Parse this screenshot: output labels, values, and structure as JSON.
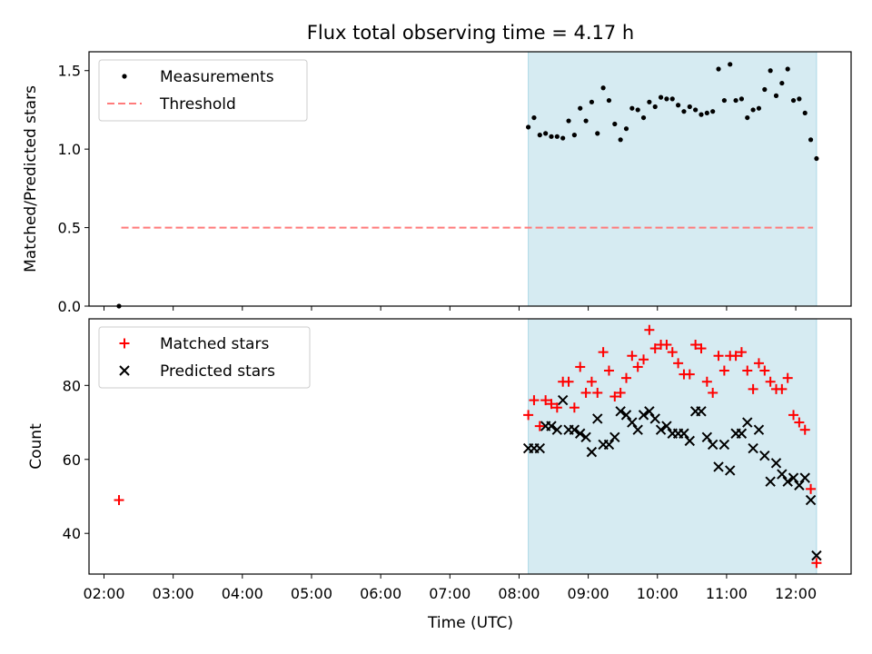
{
  "figure": {
    "title": "Flux total observing time = 4.17 h",
    "colors": {
      "shade": "#add8e6",
      "threshold": "#ff7b7b",
      "matched": "#ff0000",
      "predicted": "#000000",
      "measurement": "#000000"
    }
  },
  "chart_data": [
    {
      "type": "scatter",
      "panel": "top",
      "title": "Flux total observing time = 4.17 h",
      "xlabel": "",
      "ylabel": "Matched/Predicted stars",
      "xlim": [
        "01:47",
        "12:48"
      ],
      "ylim": [
        0,
        1.62
      ],
      "yticks": [
        "0.0",
        "0.5",
        "1.0",
        "1.5"
      ],
      "shaded_interval": [
        "08:08",
        "12:18"
      ],
      "legend_position": "upper left",
      "threshold": {
        "name": "Threshold",
        "y": 0.5,
        "x": [
          "02:15",
          "12:15"
        ]
      },
      "series": [
        {
          "name": "Measurements",
          "points": [
            [
              "02:13",
              0.0
            ],
            [
              "08:08",
              1.14
            ],
            [
              "08:13",
              1.2
            ],
            [
              "08:18",
              1.09
            ],
            [
              "08:23",
              1.1
            ],
            [
              "08:28",
              1.08
            ],
            [
              "08:33",
              1.08
            ],
            [
              "08:38",
              1.07
            ],
            [
              "08:43",
              1.18
            ],
            [
              "08:48",
              1.09
            ],
            [
              "08:53",
              1.26
            ],
            [
              "08:58",
              1.18
            ],
            [
              "09:03",
              1.3
            ],
            [
              "09:08",
              1.1
            ],
            [
              "09:13",
              1.39
            ],
            [
              "09:18",
              1.31
            ],
            [
              "09:23",
              1.16
            ],
            [
              "09:28",
              1.06
            ],
            [
              "09:33",
              1.13
            ],
            [
              "09:38",
              1.26
            ],
            [
              "09:43",
              1.25
            ],
            [
              "09:48",
              1.2
            ],
            [
              "09:53",
              1.3
            ],
            [
              "09:58",
              1.27
            ],
            [
              "10:03",
              1.33
            ],
            [
              "10:08",
              1.32
            ],
            [
              "10:13",
              1.32
            ],
            [
              "10:18",
              1.28
            ],
            [
              "10:23",
              1.24
            ],
            [
              "10:28",
              1.27
            ],
            [
              "10:33",
              1.25
            ],
            [
              "10:38",
              1.22
            ],
            [
              "10:43",
              1.23
            ],
            [
              "10:48",
              1.24
            ],
            [
              "10:53",
              1.51
            ],
            [
              "10:58",
              1.31
            ],
            [
              "11:03",
              1.54
            ],
            [
              "11:08",
              1.31
            ],
            [
              "11:13",
              1.32
            ],
            [
              "11:18",
              1.2
            ],
            [
              "11:23",
              1.25
            ],
            [
              "11:28",
              1.26
            ],
            [
              "11:33",
              1.38
            ],
            [
              "11:38",
              1.5
            ],
            [
              "11:43",
              1.34
            ],
            [
              "11:48",
              1.42
            ],
            [
              "11:53",
              1.51
            ],
            [
              "11:58",
              1.31
            ],
            [
              "12:03",
              1.32
            ],
            [
              "12:08",
              1.23
            ],
            [
              "12:13",
              1.06
            ],
            [
              "12:18",
              0.94
            ]
          ]
        }
      ]
    },
    {
      "type": "scatter",
      "panel": "bottom",
      "xlabel": "Time (UTC)",
      "ylabel": "Count",
      "xlim": [
        "01:47",
        "12:48"
      ],
      "ylim": [
        29,
        98
      ],
      "yticks": [
        "40",
        "60",
        "80"
      ],
      "xticks": [
        "02:00",
        "03:00",
        "04:00",
        "05:00",
        "06:00",
        "07:00",
        "08:00",
        "09:00",
        "10:00",
        "11:00",
        "12:00"
      ],
      "shaded_interval": [
        "08:08",
        "12:18"
      ],
      "legend_position": "upper left",
      "series": [
        {
          "name": "Matched stars",
          "marker": "plus",
          "points": [
            [
              "02:13",
              49
            ],
            [
              "08:08",
              72
            ],
            [
              "08:13",
              76
            ],
            [
              "08:18",
              69
            ],
            [
              "08:23",
              76
            ],
            [
              "08:28",
              75
            ],
            [
              "08:33",
              74
            ],
            [
              "08:38",
              81
            ],
            [
              "08:43",
              81
            ],
            [
              "08:48",
              74
            ],
            [
              "08:53",
              85
            ],
            [
              "08:58",
              78
            ],
            [
              "09:03",
              81
            ],
            [
              "09:08",
              78
            ],
            [
              "09:13",
              89
            ],
            [
              "09:18",
              84
            ],
            [
              "09:23",
              77
            ],
            [
              "09:28",
              78
            ],
            [
              "09:33",
              82
            ],
            [
              "09:38",
              88
            ],
            [
              "09:43",
              85
            ],
            [
              "09:48",
              87
            ],
            [
              "09:53",
              95
            ],
            [
              "09:58",
              90
            ],
            [
              "10:03",
              91
            ],
            [
              "10:08",
              91
            ],
            [
              "10:13",
              89
            ],
            [
              "10:18",
              86
            ],
            [
              "10:23",
              83
            ],
            [
              "10:28",
              83
            ],
            [
              "10:33",
              91
            ],
            [
              "10:38",
              90
            ],
            [
              "10:43",
              81
            ],
            [
              "10:48",
              78
            ],
            [
              "10:53",
              88
            ],
            [
              "10:58",
              84
            ],
            [
              "11:03",
              88
            ],
            [
              "11:08",
              88
            ],
            [
              "11:13",
              89
            ],
            [
              "11:18",
              84
            ],
            [
              "11:23",
              79
            ],
            [
              "11:28",
              86
            ],
            [
              "11:33",
              84
            ],
            [
              "11:38",
              81
            ],
            [
              "11:43",
              79
            ],
            [
              "11:48",
              79
            ],
            [
              "11:53",
              82
            ],
            [
              "11:58",
              72
            ],
            [
              "12:03",
              70
            ],
            [
              "12:08",
              68
            ],
            [
              "12:13",
              52
            ],
            [
              "12:18",
              32
            ]
          ]
        },
        {
          "name": "Predicted stars",
          "marker": "x",
          "points": [
            [
              "08:08",
              63
            ],
            [
              "08:13",
              63
            ],
            [
              "08:18",
              63
            ],
            [
              "08:23",
              69
            ],
            [
              "08:28",
              69
            ],
            [
              "08:33",
              68
            ],
            [
              "08:38",
              76
            ],
            [
              "08:43",
              68
            ],
            [
              "08:48",
              68
            ],
            [
              "08:53",
              67
            ],
            [
              "08:58",
              66
            ],
            [
              "09:03",
              62
            ],
            [
              "09:08",
              71
            ],
            [
              "09:13",
              64
            ],
            [
              "09:18",
              64
            ],
            [
              "09:23",
              66
            ],
            [
              "09:28",
              73
            ],
            [
              "09:33",
              72
            ],
            [
              "09:38",
              70
            ],
            [
              "09:43",
              68
            ],
            [
              "09:48",
              72
            ],
            [
              "09:53",
              73
            ],
            [
              "09:58",
              71
            ],
            [
              "10:03",
              68
            ],
            [
              "10:08",
              69
            ],
            [
              "10:13",
              67
            ],
            [
              "10:18",
              67
            ],
            [
              "10:23",
              67
            ],
            [
              "10:28",
              65
            ],
            [
              "10:33",
              73
            ],
            [
              "10:38",
              73
            ],
            [
              "10:43",
              66
            ],
            [
              "10:48",
              64
            ],
            [
              "10:53",
              58
            ],
            [
              "10:58",
              64
            ],
            [
              "11:03",
              57
            ],
            [
              "11:08",
              67
            ],
            [
              "11:13",
              67
            ],
            [
              "11:18",
              70
            ],
            [
              "11:23",
              63
            ],
            [
              "11:28",
              68
            ],
            [
              "11:33",
              61
            ],
            [
              "11:38",
              54
            ],
            [
              "11:43",
              59
            ],
            [
              "11:48",
              56
            ],
            [
              "11:53",
              54
            ],
            [
              "11:58",
              55
            ],
            [
              "12:03",
              53
            ],
            [
              "12:08",
              55
            ],
            [
              "12:13",
              49
            ],
            [
              "12:18",
              34
            ]
          ]
        }
      ]
    }
  ]
}
